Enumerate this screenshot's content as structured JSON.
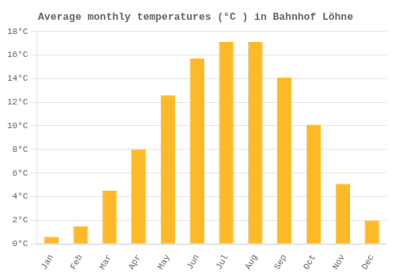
{
  "chart_data": {
    "type": "bar",
    "title": "Average monthly temperatures (°C ) in Bahnhof Löhne",
    "categories": [
      "Jan",
      "Feb",
      "Mar",
      "Apr",
      "May",
      "Jun",
      "Jul",
      "Aug",
      "Sep",
      "Oct",
      "Nov",
      "Dec"
    ],
    "values": [
      0.6,
      1.5,
      4.5,
      8.0,
      12.6,
      15.7,
      17.1,
      17.1,
      14.1,
      10.1,
      5.1,
      2.0
    ],
    "color": "#FDB927",
    "ylim": [
      0,
      18
    ],
    "yticks": [
      {
        "value": 0,
        "label": "0°C"
      },
      {
        "value": 2,
        "label": "2°C"
      },
      {
        "value": 4,
        "label": "4°C"
      },
      {
        "value": 6,
        "label": "6°C"
      },
      {
        "value": 8,
        "label": "8°C"
      },
      {
        "value": 10,
        "label": "10°C"
      },
      {
        "value": 12,
        "label": "12°C"
      },
      {
        "value": 14,
        "label": "14°C"
      },
      {
        "value": 16,
        "label": "16°C"
      },
      {
        "value": 18,
        "label": "18°C"
      }
    ],
    "grid": true
  }
}
